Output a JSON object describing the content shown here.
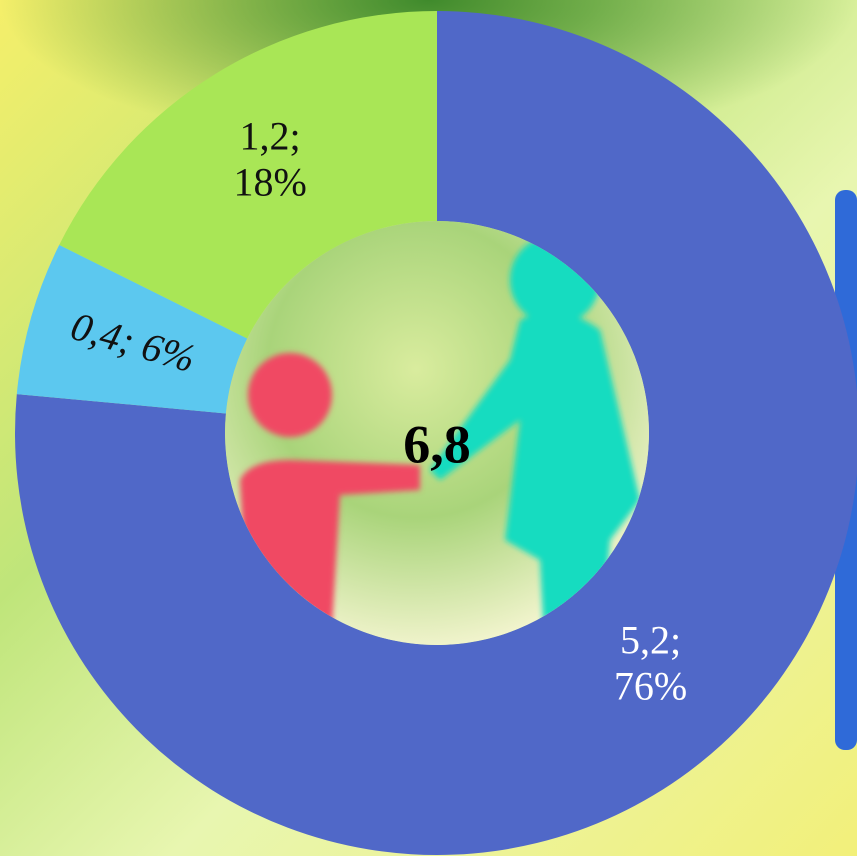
{
  "chart_data": {
    "type": "donut",
    "categories": [
      null,
      null,
      null
    ],
    "values": [
      5.2,
      0.4,
      1.2
    ],
    "value_labels": [
      [
        "5,2;",
        "76%"
      ],
      [
        "0,4; 6%"
      ],
      [
        "1,2;",
        "18%"
      ]
    ],
    "colors": [
      "#5068c8",
      "#5cc8ef",
      "#a9e656"
    ],
    "label_colors": [
      "#ffffff",
      "#111111",
      "#111111"
    ],
    "center_label": "6,8"
  }
}
